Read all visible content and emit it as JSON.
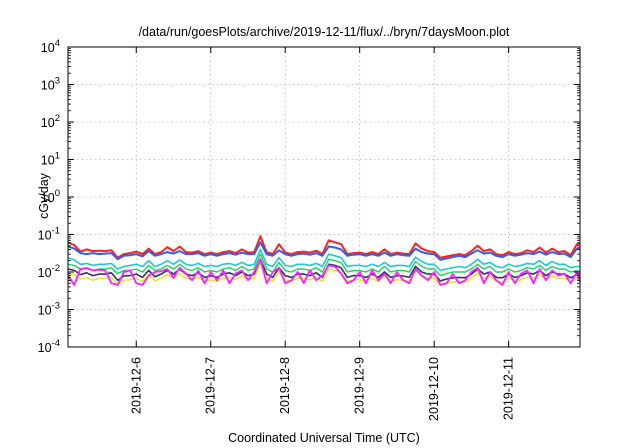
{
  "chart_data": {
    "type": "line",
    "title": "/data/run/goesPlots/archive/2019-12-11/flux/../bryn/7daysMoon.plot",
    "xlabel": "Coordinated Universal Time (UTC)",
    "ylabel": "cGy/day",
    "yscale": "log",
    "ylim": [
      0.0001,
      10000
    ],
    "y_ticks": [
      {
        "value": 0.0001,
        "base": "10",
        "exp": "-4"
      },
      {
        "value": 0.001,
        "base": "10",
        "exp": "-3"
      },
      {
        "value": 0.01,
        "base": "10",
        "exp": "-2"
      },
      {
        "value": 0.1,
        "base": "10",
        "exp": "-1"
      },
      {
        "value": 1,
        "base": "10",
        "exp": "0"
      },
      {
        "value": 10,
        "base": "10",
        "exp": "1"
      },
      {
        "value": 100,
        "base": "10",
        "exp": "2"
      },
      {
        "value": 1000,
        "base": "10",
        "exp": "3"
      },
      {
        "value": 10000,
        "base": "10",
        "exp": "4"
      }
    ],
    "xlim": [
      "2019-12-05T02:00",
      "2019-12-11T23:00"
    ],
    "x_ticks": [
      "2019-12-6",
      "2019-12-7",
      "2019-12-8",
      "2019-12-9",
      "2019-12-10",
      "2019-12-11"
    ],
    "x_tick_dates": [
      "2019-12-06",
      "2019-12-07",
      "2019-12-08",
      "2019-12-09",
      "2019-12-10",
      "2019-12-11"
    ],
    "grid": true,
    "x": [
      "2019-12-05T02:00",
      "2019-12-05T04:00",
      "2019-12-05T06:00",
      "2019-12-05T08:00",
      "2019-12-05T10:00",
      "2019-12-05T12:00",
      "2019-12-05T14:00",
      "2019-12-05T16:00",
      "2019-12-05T18:00",
      "2019-12-05T20:00",
      "2019-12-05T22:00",
      "2019-12-06T00:00",
      "2019-12-06T02:00",
      "2019-12-06T04:00",
      "2019-12-06T06:00",
      "2019-12-06T08:00",
      "2019-12-06T10:00",
      "2019-12-06T12:00",
      "2019-12-06T14:00",
      "2019-12-06T16:00",
      "2019-12-06T18:00",
      "2019-12-06T20:00",
      "2019-12-06T22:00",
      "2019-12-07T00:00",
      "2019-12-07T02:00",
      "2019-12-07T04:00",
      "2019-12-07T06:00",
      "2019-12-07T08:00",
      "2019-12-07T10:00",
      "2019-12-07T12:00",
      "2019-12-07T14:00",
      "2019-12-07T16:00",
      "2019-12-07T18:00",
      "2019-12-07T20:00",
      "2019-12-07T22:00",
      "2019-12-08T00:00",
      "2019-12-08T02:00",
      "2019-12-08T04:00",
      "2019-12-08T06:00",
      "2019-12-08T08:00",
      "2019-12-08T10:00",
      "2019-12-08T12:00",
      "2019-12-08T14:00",
      "2019-12-08T16:00",
      "2019-12-08T18:00",
      "2019-12-08T20:00",
      "2019-12-08T22:00",
      "2019-12-09T00:00",
      "2019-12-09T02:00",
      "2019-12-09T04:00",
      "2019-12-09T06:00",
      "2019-12-09T08:00",
      "2019-12-09T10:00",
      "2019-12-09T12:00",
      "2019-12-09T14:00",
      "2019-12-09T16:00",
      "2019-12-09T18:00",
      "2019-12-09T20:00",
      "2019-12-09T22:00",
      "2019-12-10T00:00",
      "2019-12-10T02:00",
      "2019-12-10T04:00",
      "2019-12-10T06:00",
      "2019-12-10T08:00",
      "2019-12-10T10:00",
      "2019-12-10T12:00",
      "2019-12-10T14:00",
      "2019-12-10T16:00",
      "2019-12-10T18:00",
      "2019-12-10T20:00",
      "2019-12-10T22:00",
      "2019-12-11T00:00",
      "2019-12-11T02:00",
      "2019-12-11T04:00",
      "2019-12-11T06:00",
      "2019-12-11T08:00",
      "2019-12-11T10:00",
      "2019-12-11T12:00",
      "2019-12-11T14:00",
      "2019-12-11T16:00",
      "2019-12-11T18:00",
      "2019-12-11T20:00",
      "2019-12-11T22:00",
      "2019-12-11T23:00"
    ],
    "series": [
      {
        "color": "#ff2020",
        "width": 2.0,
        "values": [
          0.062,
          0.052,
          0.035,
          0.04,
          0.036,
          0.037,
          0.036,
          0.038,
          0.024,
          0.03,
          0.032,
          0.035,
          0.03,
          0.042,
          0.03,
          0.034,
          0.046,
          0.036,
          0.048,
          0.034,
          0.033,
          0.036,
          0.03,
          0.033,
          0.03,
          0.034,
          0.036,
          0.032,
          0.04,
          0.033,
          0.034,
          0.09,
          0.034,
          0.03,
          0.055,
          0.033,
          0.03,
          0.034,
          0.035,
          0.033,
          0.037,
          0.03,
          0.07,
          0.062,
          0.055,
          0.03,
          0.032,
          0.033,
          0.03,
          0.034,
          0.03,
          0.04,
          0.03,
          0.033,
          0.031,
          0.03,
          0.058,
          0.042,
          0.036,
          0.034,
          0.024,
          0.026,
          0.028,
          0.03,
          0.028,
          0.036,
          0.05,
          0.036,
          0.04,
          0.03,
          0.028,
          0.034,
          0.03,
          0.032,
          0.038,
          0.034,
          0.045,
          0.033,
          0.042,
          0.034,
          0.036,
          0.028,
          0.055,
          0.058
        ]
      },
      {
        "color": "#3060e8",
        "width": 2.0,
        "values": [
          0.048,
          0.042,
          0.032,
          0.03,
          0.032,
          0.03,
          0.031,
          0.032,
          0.022,
          0.027,
          0.028,
          0.03,
          0.026,
          0.036,
          0.027,
          0.03,
          0.034,
          0.031,
          0.036,
          0.03,
          0.03,
          0.032,
          0.027,
          0.03,
          0.027,
          0.03,
          0.032,
          0.029,
          0.033,
          0.03,
          0.03,
          0.062,
          0.03,
          0.027,
          0.038,
          0.03,
          0.027,
          0.03,
          0.031,
          0.029,
          0.032,
          0.027,
          0.048,
          0.045,
          0.04,
          0.027,
          0.029,
          0.03,
          0.027,
          0.03,
          0.027,
          0.033,
          0.027,
          0.03,
          0.028,
          0.027,
          0.042,
          0.034,
          0.031,
          0.03,
          0.021,
          0.023,
          0.025,
          0.027,
          0.025,
          0.031,
          0.038,
          0.031,
          0.033,
          0.027,
          0.025,
          0.03,
          0.027,
          0.029,
          0.032,
          0.03,
          0.035,
          0.029,
          0.034,
          0.03,
          0.031,
          0.025,
          0.042,
          0.045
        ]
      },
      {
        "color": "#20c8d0",
        "width": 1.6,
        "values": [
          0.024,
          0.021,
          0.016,
          0.017,
          0.015,
          0.016,
          0.016,
          0.017,
          0.012,
          0.014,
          0.015,
          0.016,
          0.014,
          0.02,
          0.014,
          0.016,
          0.02,
          0.016,
          0.021,
          0.016,
          0.015,
          0.017,
          0.014,
          0.015,
          0.014,
          0.016,
          0.017,
          0.015,
          0.018,
          0.015,
          0.016,
          0.04,
          0.016,
          0.014,
          0.024,
          0.015,
          0.014,
          0.016,
          0.016,
          0.015,
          0.017,
          0.014,
          0.03,
          0.027,
          0.024,
          0.014,
          0.015,
          0.015,
          0.014,
          0.016,
          0.014,
          0.018,
          0.014,
          0.015,
          0.015,
          0.014,
          0.025,
          0.019,
          0.016,
          0.016,
          0.011,
          0.012,
          0.013,
          0.014,
          0.013,
          0.016,
          0.022,
          0.016,
          0.018,
          0.014,
          0.013,
          0.016,
          0.014,
          0.015,
          0.017,
          0.016,
          0.02,
          0.015,
          0.019,
          0.016,
          0.016,
          0.013,
          0.014,
          0.014
        ]
      },
      {
        "color": "#20d060",
        "width": 1.4,
        "values": [
          0.016,
          0.015,
          0.012,
          0.013,
          0.011,
          0.012,
          0.012,
          0.013,
          0.009,
          0.011,
          0.011,
          0.012,
          0.01,
          0.015,
          0.011,
          0.012,
          0.015,
          0.012,
          0.016,
          0.012,
          0.011,
          0.013,
          0.01,
          0.011,
          0.01,
          0.012,
          0.013,
          0.011,
          0.014,
          0.011,
          0.012,
          0.03,
          0.012,
          0.01,
          0.018,
          0.011,
          0.01,
          0.012,
          0.012,
          0.011,
          0.013,
          0.01,
          0.022,
          0.02,
          0.018,
          0.01,
          0.011,
          0.011,
          0.01,
          0.012,
          0.01,
          0.014,
          0.01,
          0.011,
          0.011,
          0.01,
          0.019,
          0.014,
          0.012,
          0.012,
          0.008,
          0.009,
          0.01,
          0.01,
          0.01,
          0.012,
          0.016,
          0.012,
          0.014,
          0.01,
          0.01,
          0.012,
          0.01,
          0.011,
          0.013,
          0.012,
          0.015,
          0.011,
          0.014,
          0.012,
          0.012,
          0.01,
          0.011,
          0.01
        ]
      },
      {
        "color": "#303070",
        "width": 1.6,
        "values": [
          0.012,
          0.011,
          0.0085,
          0.0095,
          0.008,
          0.0088,
          0.0088,
          0.0095,
          0.006,
          0.0078,
          0.008,
          0.0088,
          0.0072,
          0.011,
          0.0075,
          0.0088,
          0.011,
          0.0088,
          0.012,
          0.0088,
          0.008,
          0.0095,
          0.0072,
          0.008,
          0.0072,
          0.0088,
          0.0095,
          0.008,
          0.01,
          0.008,
          0.0088,
          0.022,
          0.0088,
          0.0072,
          0.013,
          0.008,
          0.0072,
          0.0088,
          0.0088,
          0.008,
          0.0095,
          0.0072,
          0.016,
          0.015,
          0.013,
          0.0072,
          0.008,
          0.008,
          0.0072,
          0.0088,
          0.0072,
          0.01,
          0.0072,
          0.008,
          0.0078,
          0.0072,
          0.014,
          0.01,
          0.0088,
          0.0088,
          0.0058,
          0.0065,
          0.007,
          0.0072,
          0.007,
          0.0088,
          0.012,
          0.0088,
          0.01,
          0.0072,
          0.007,
          0.0088,
          0.0072,
          0.008,
          0.0095,
          0.0088,
          0.011,
          0.008,
          0.01,
          0.0088,
          0.0088,
          0.007,
          0.0085,
          0.008
        ]
      },
      {
        "color": "#e8e020",
        "width": 1.4,
        "values": [
          0.009,
          0.0085,
          0.0065,
          0.0072,
          0.006,
          0.0068,
          0.0068,
          0.0072,
          0.0048,
          0.006,
          0.0062,
          0.0068,
          0.0056,
          0.0085,
          0.0058,
          0.0068,
          0.0085,
          0.0068,
          0.0092,
          0.0068,
          0.0062,
          0.0072,
          0.0056,
          0.0062,
          0.0056,
          0.0068,
          0.0072,
          0.0062,
          0.0078,
          0.0062,
          0.0068,
          0.017,
          0.0068,
          0.0056,
          0.01,
          0.0062,
          0.0056,
          0.0068,
          0.0068,
          0.0062,
          0.0072,
          0.0056,
          0.012,
          0.011,
          0.01,
          0.0056,
          0.0062,
          0.0062,
          0.0056,
          0.0068,
          0.0056,
          0.0078,
          0.0056,
          0.0062,
          0.006,
          0.0056,
          0.011,
          0.0078,
          0.0068,
          0.0068,
          0.0045,
          0.005,
          0.0054,
          0.0056,
          0.0054,
          0.0068,
          0.0092,
          0.0068,
          0.0078,
          0.0056,
          0.0054,
          0.0068,
          0.0056,
          0.0062,
          0.0072,
          0.0068,
          0.0085,
          0.0062,
          0.0078,
          0.0068,
          0.0068,
          0.0054,
          0.0065,
          0.006
        ]
      },
      {
        "color": "#ff20ff",
        "width": 1.8,
        "values": [
          0.008,
          0.0045,
          0.012,
          0.0125,
          0.011,
          0.0115,
          0.011,
          0.005,
          0.0045,
          0.01,
          0.011,
          0.005,
          0.0045,
          0.008,
          0.01,
          0.0105,
          0.012,
          0.007,
          0.013,
          0.009,
          0.006,
          0.011,
          0.005,
          0.01,
          0.006,
          0.011,
          0.005,
          0.009,
          0.011,
          0.006,
          0.01,
          0.022,
          0.005,
          0.01,
          0.013,
          0.005,
          0.006,
          0.01,
          0.005,
          0.011,
          0.006,
          0.008,
          0.015,
          0.014,
          0.009,
          0.005,
          0.006,
          0.01,
          0.005,
          0.011,
          0.006,
          0.009,
          0.005,
          0.01,
          0.006,
          0.005,
          0.012,
          0.008,
          0.006,
          0.01,
          0.0045,
          0.005,
          0.009,
          0.005,
          0.006,
          0.01,
          0.013,
          0.005,
          0.01,
          0.006,
          0.0045,
          0.01,
          0.005,
          0.009,
          0.011,
          0.005,
          0.012,
          0.006,
          0.011,
          0.008,
          0.009,
          0.005,
          0.01,
          0.0055
        ]
      }
    ]
  }
}
